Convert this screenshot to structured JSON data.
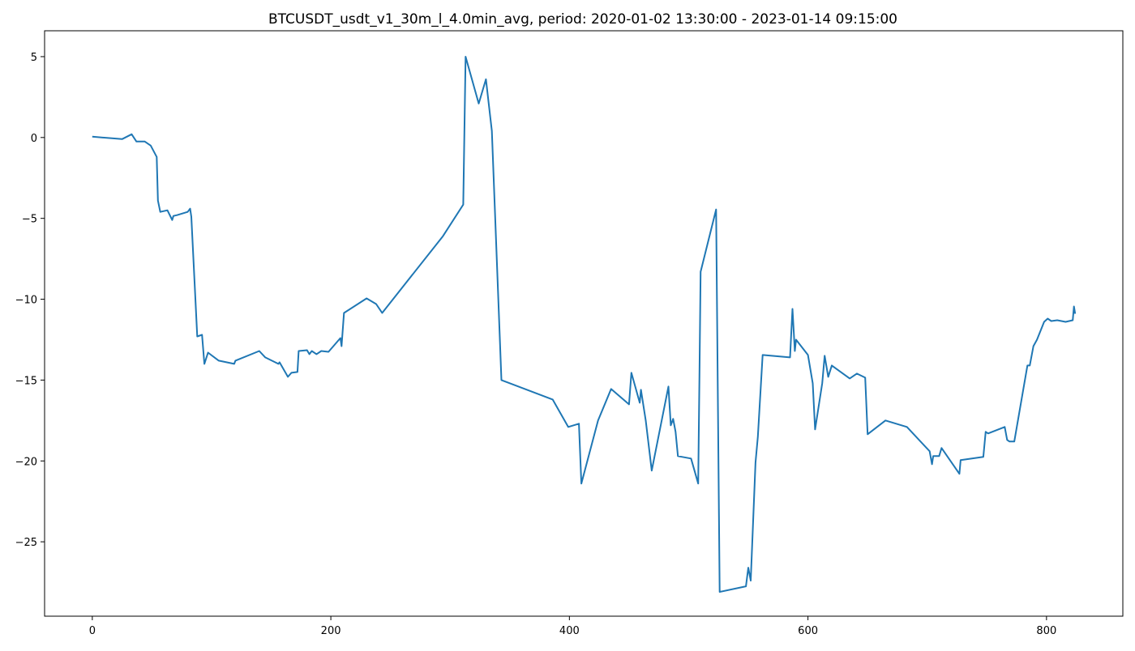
{
  "chart_data": {
    "type": "line",
    "title": "BTCUSDT_usdt_v1_30m_l_4.0min_avg, period: 2020-01-02 13:30:00 - 2023-01-14 09:15:00",
    "xlabel": "",
    "ylabel": "",
    "xlim": [
      -40,
      864
    ],
    "ylim": [
      -29.6,
      6.6
    ],
    "x_ticks": [
      0,
      200,
      400,
      600,
      800
    ],
    "y_ticks": [
      5,
      0,
      -5,
      -10,
      -15,
      -20,
      -25
    ],
    "grid": false,
    "legend": "none",
    "line_color": "#1f77b4",
    "series": [
      {
        "x": [
          0,
          25,
          33,
          37,
          44,
          49,
          54,
          55,
          57,
          63,
          67,
          68,
          71,
          80,
          82,
          83,
          88,
          92,
          94,
          97,
          106,
          119,
          120,
          140,
          145,
          156,
          157,
          164,
          167,
          172,
          173,
          180,
          182,
          184,
          188,
          192,
          198,
          208,
          209,
          211,
          230,
          238,
          243,
          294,
          311,
          313,
          324,
          330,
          335,
          343,
          386,
          399,
          408,
          410,
          424,
          435,
          450,
          452,
          459,
          460,
          464,
          469,
          483,
          485,
          487,
          489,
          491,
          502,
          508,
          509,
          510,
          523,
          526,
          548,
          550,
          552,
          556,
          558,
          562,
          585,
          587,
          589,
          590,
          600,
          604,
          606,
          612,
          614,
          617,
          620,
          635,
          641,
          648,
          650,
          665,
          683,
          702,
          704,
          705,
          710,
          712,
          727,
          728,
          747,
          749,
          751,
          765,
          767,
          769,
          773,
          784,
          786,
          789,
          792,
          798,
          801,
          804,
          809,
          816,
          822,
          823,
          824
        ],
        "y": [
          0.05,
          -0.1,
          0.2,
          -0.25,
          -0.25,
          -0.5,
          -1.2,
          -3.9,
          -4.6,
          -4.5,
          -5.1,
          -4.85,
          -4.8,
          -4.6,
          -4.4,
          -4.9,
          -12.3,
          -12.2,
          -14.0,
          -13.3,
          -13.8,
          -14.0,
          -13.8,
          -13.2,
          -13.6,
          -14.0,
          -13.9,
          -14.8,
          -14.55,
          -14.5,
          -13.2,
          -13.15,
          -13.4,
          -13.2,
          -13.4,
          -13.2,
          -13.25,
          -12.4,
          -12.9,
          -10.85,
          -9.95,
          -10.3,
          -10.85,
          -6.1,
          -4.15,
          5.0,
          2.1,
          3.6,
          0.4,
          -15.0,
          -16.2,
          -17.9,
          -17.7,
          -21.4,
          -17.5,
          -15.55,
          -16.5,
          -14.55,
          -16.4,
          -15.6,
          -17.5,
          -20.6,
          -15.4,
          -17.8,
          -17.4,
          -18.2,
          -19.7,
          -19.85,
          -21.4,
          -15.0,
          -8.3,
          -4.45,
          -28.1,
          -27.75,
          -26.6,
          -27.4,
          -20.1,
          -18.5,
          -13.45,
          -13.6,
          -10.6,
          -13.2,
          -12.5,
          -13.45,
          -15.2,
          -18.05,
          -15.2,
          -13.5,
          -14.8,
          -14.1,
          -14.9,
          -14.6,
          -14.85,
          -18.35,
          -17.5,
          -17.9,
          -19.4,
          -20.2,
          -19.7,
          -19.7,
          -19.2,
          -20.8,
          -19.95,
          -19.75,
          -18.2,
          -18.3,
          -17.9,
          -18.7,
          -18.8,
          -18.8,
          -14.1,
          -14.1,
          -12.9,
          -12.5,
          -11.4,
          -11.2,
          -11.35,
          -11.3,
          -11.4,
          -11.3,
          -10.45,
          -10.9
        ]
      }
    ]
  }
}
